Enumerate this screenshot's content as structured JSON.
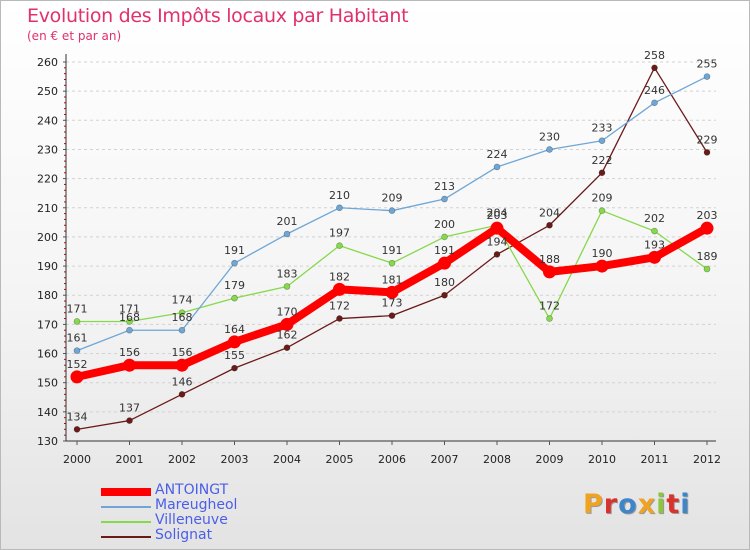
{
  "title": "Evolution des Impôts locaux par Habitant",
  "subtitle": "(en € et par an)",
  "brand": "Proxiti",
  "brand_colors": [
    "#f0a321",
    "#d9312b",
    "#3f86c9",
    "#f0a321",
    "#8cc63f",
    "#d9312b",
    "#3f86c9"
  ],
  "chart_data": {
    "type": "line",
    "x": [
      "2000",
      "2001",
      "2002",
      "2003",
      "2004",
      "2005",
      "2006",
      "2007",
      "2008",
      "2009",
      "2010",
      "2011",
      "2012"
    ],
    "y_ticks": [
      130,
      140,
      150,
      160,
      170,
      180,
      190,
      200,
      210,
      220,
      230,
      240,
      250,
      260
    ],
    "ylim": [
      130,
      260
    ],
    "grid": "horizontal-dashed",
    "legend_position": "bottom-left",
    "series": [
      {
        "name": "Solignat",
        "color": "#6b1a1a",
        "values": [
          134,
          137,
          146,
          155,
          162,
          172,
          173,
          180,
          194,
          204,
          222,
          258,
          229
        ]
      },
      {
        "name": "Villeneuve",
        "color": "#86d94a",
        "values": [
          171,
          171,
          174,
          179,
          183,
          197,
          191,
          200,
          204,
          172,
          209,
          202,
          189
        ]
      },
      {
        "name": "Mareugheol",
        "color": "#6ea6d6",
        "values": [
          161,
          168,
          168,
          191,
          201,
          210,
          209,
          213,
          224,
          230,
          233,
          246,
          255
        ]
      },
      {
        "name": "ANTOINGT",
        "color": "#ff0000",
        "values": [
          152,
          156,
          156,
          164,
          170,
          182,
          181,
          191,
          203,
          188,
          190,
          193,
          203
        ]
      }
    ],
    "legend_order": [
      "ANTOINGT",
      "Mareugheol",
      "Villeneuve",
      "Solignat"
    ]
  }
}
